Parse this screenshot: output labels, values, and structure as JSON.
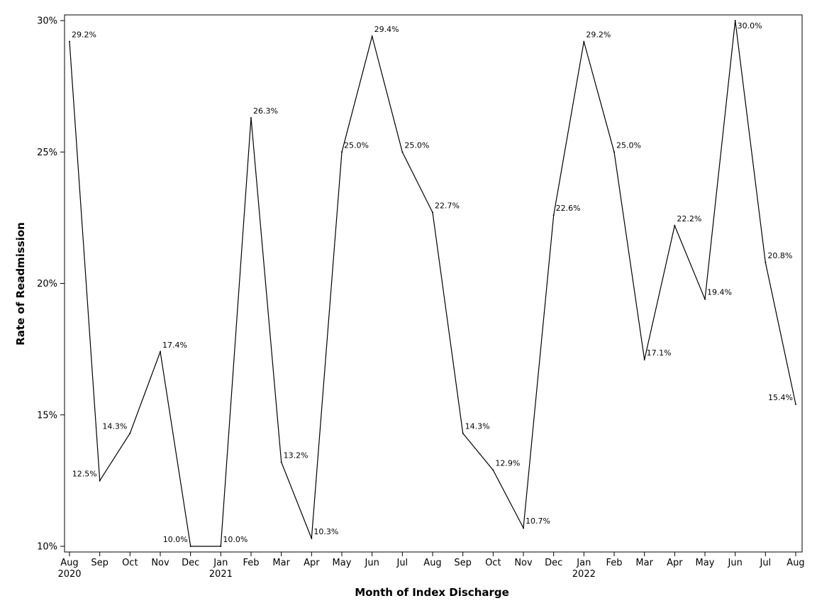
{
  "chart_data": {
    "type": "line",
    "xlabel": "Month of Index Discharge",
    "ylabel": "Rate of Readmission",
    "ylim": [
      10,
      30
    ],
    "yticks": [
      "10%",
      "15%",
      "20%",
      "25%",
      "30%"
    ],
    "ytick_values": [
      10,
      15,
      20,
      25,
      30
    ],
    "grid": false,
    "categories": [
      "Aug",
      "Sep",
      "Oct",
      "Nov",
      "Dec",
      "Jan",
      "Feb",
      "Mar",
      "Apr",
      "May",
      "Jun",
      "Jul",
      "Aug",
      "Sep",
      "Oct",
      "Nov",
      "Dec",
      "Jan",
      "Feb",
      "Mar",
      "Apr",
      "May",
      "Jun",
      "Jul",
      "Aug"
    ],
    "year_labels": [
      "2020",
      "",
      "",
      "",
      "",
      "2021",
      "",
      "",
      "",
      "",
      "",
      "",
      "",
      "",
      "",
      "",
      "",
      "2022",
      "",
      "",
      "",
      "",
      "",
      "",
      ""
    ],
    "values": [
      29.2,
      12.5,
      14.3,
      17.4,
      10.0,
      10.0,
      26.3,
      13.2,
      10.3,
      25.0,
      29.4,
      25.0,
      22.7,
      14.3,
      12.9,
      10.7,
      22.6,
      29.2,
      25.0,
      17.1,
      22.2,
      19.4,
      30.0,
      20.8,
      15.4
    ],
    "data_labels": [
      "29.2%",
      "12.5%",
      "14.3%",
      "17.4%",
      "10.0%",
      "10.0%",
      "26.3%",
      "13.2%",
      "10.3%",
      "25.0%",
      "29.4%",
      "25.0%",
      "22.7%",
      "14.3%",
      "12.9%",
      "10.7%",
      "22.6%",
      "29.2%",
      "25.0%",
      "17.1%",
      "22.2%",
      "19.4%",
      "30.0%",
      "20.8%",
      "15.4%"
    ],
    "label_placement": [
      "right",
      "left",
      "left",
      "right",
      "left",
      "right",
      "right",
      "right",
      "right",
      "right",
      "right",
      "right",
      "right",
      "right",
      "right",
      "right",
      "right",
      "right",
      "right",
      "right",
      "right",
      "right",
      "right",
      "right",
      "left"
    ],
    "line_color": "#000000"
  }
}
